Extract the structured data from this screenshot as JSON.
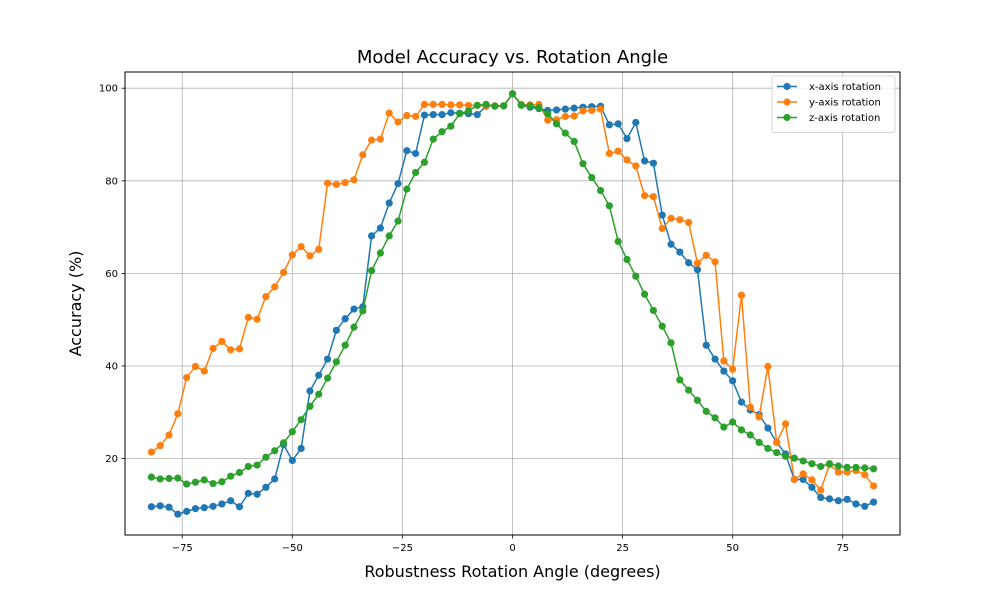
{
  "chart_data": {
    "type": "line",
    "title": "Model Accuracy vs. Rotation Angle",
    "xlabel": "Robustness Rotation Angle (degrees)",
    "ylabel": "Accuracy (%)",
    "xlim": [
      -88,
      88
    ],
    "ylim": [
      3.5,
      103.5
    ],
    "xticks": [
      -75,
      -50,
      -25,
      0,
      25,
      50,
      75
    ],
    "yticks": [
      20,
      40,
      60,
      80,
      100
    ],
    "grid": true,
    "legend_position": "top-right",
    "x": [
      -82,
      -80,
      -78,
      -76,
      -74,
      -72,
      -70,
      -68,
      -66,
      -64,
      -62,
      -60,
      -58,
      -56,
      -54,
      -52,
      -50,
      -48,
      -46,
      -44,
      -42,
      -40,
      -38,
      -36,
      -34,
      -32,
      -30,
      -28,
      -26,
      -24,
      -22,
      -20,
      -18,
      -16,
      -14,
      -12,
      -10,
      -8,
      -6,
      -4,
      -2,
      0,
      2,
      4,
      6,
      8,
      10,
      12,
      14,
      16,
      18,
      20,
      22,
      24,
      26,
      28,
      30,
      32,
      34,
      36,
      38,
      40,
      42,
      44,
      46,
      48,
      50,
      52,
      54,
      56,
      58,
      60,
      62,
      64,
      66,
      68,
      70,
      72,
      74,
      76,
      78,
      80,
      82
    ],
    "series": [
      {
        "name": "x-axis rotation",
        "color": "#1f77b4",
        "values": [
          9.6,
          9.8,
          9.5,
          8.0,
          8.6,
          9.2,
          9.4,
          9.7,
          10.2,
          10.9,
          9.6,
          12.5,
          12.3,
          13.8,
          15.6,
          23.0,
          19.6,
          22.2,
          34.6,
          38.0,
          41.5,
          47.7,
          50.2,
          52.3,
          52.8,
          68.1,
          69.8,
          75.2,
          79.4,
          86.5,
          85.9,
          94.2,
          94.3,
          94.3,
          94.7,
          94.6,
          94.5,
          94.3,
          96.1,
          96.2,
          96.2,
          98.8,
          96.4,
          95.9,
          95.6,
          95.2,
          95.3,
          95.5,
          95.7,
          95.9,
          96.0,
          96.1,
          92.1,
          92.3,
          89.1,
          92.6,
          84.3,
          83.8,
          72.6,
          66.3,
          64.6,
          62.3,
          60.8,
          44.5,
          41.5,
          38.9,
          36.8,
          32.2,
          30.5,
          29.5,
          26.6,
          23.5,
          21.0,
          15.5,
          15.5,
          13.8,
          11.6,
          11.3,
          10.9,
          11.2,
          10.2,
          9.7,
          10.6
        ]
      },
      {
        "name": "y-axis rotation",
        "color": "#ff7f0e",
        "values": [
          21.4,
          22.8,
          25.1,
          29.7,
          37.5,
          39.9,
          38.9,
          43.8,
          45.3,
          43.5,
          43.7,
          50.5,
          50.1,
          55.0,
          57.1,
          60.2,
          64.0,
          65.8,
          63.8,
          65.2,
          79.5,
          79.2,
          79.6,
          80.2,
          85.6,
          88.8,
          89.0,
          94.6,
          92.7,
          94.1,
          93.9,
          96.5,
          96.5,
          96.5,
          96.4,
          96.4,
          96.3,
          96.3,
          96.2,
          96.2,
          96.2,
          98.8,
          96.5,
          96.4,
          96.5,
          93.1,
          93.2,
          93.9,
          94.0,
          95.1,
          95.2,
          95.5,
          85.9,
          86.4,
          84.5,
          83.2,
          76.8,
          76.6,
          69.7,
          71.9,
          71.6,
          71.0,
          62.2,
          63.9,
          62.5,
          41.1,
          39.3,
          55.3,
          31.1,
          29.0,
          39.9,
          23.5,
          27.5,
          15.5,
          16.7,
          15.4,
          13.2,
          18.7,
          17.1,
          17.1,
          17.4,
          16.5,
          14.1
        ]
      },
      {
        "name": "z-axis rotation",
        "color": "#2ca02c",
        "values": [
          16.0,
          15.6,
          15.7,
          15.8,
          14.5,
          14.9,
          15.4,
          14.6,
          15.0,
          16.2,
          17.0,
          18.3,
          18.6,
          20.3,
          21.7,
          23.4,
          25.8,
          28.4,
          31.3,
          33.9,
          37.4,
          40.9,
          44.5,
          48.4,
          51.9,
          60.6,
          64.4,
          68.1,
          71.3,
          78.2,
          81.8,
          84.0,
          89.0,
          90.6,
          91.8,
          94.5,
          95.1,
          96.3,
          96.5,
          96.1,
          96.2,
          98.8,
          96.3,
          96.2,
          95.8,
          94.5,
          92.3,
          90.3,
          88.5,
          83.7,
          80.7,
          77.9,
          74.6,
          66.9,
          63.0,
          59.4,
          55.5,
          52.0,
          48.6,
          45.0,
          37.0,
          34.8,
          32.6,
          30.2,
          28.8,
          26.8,
          27.9,
          26.2,
          25.1,
          23.5,
          22.2,
          21.3,
          20.5,
          20.1,
          19.5,
          18.9,
          18.3,
          18.9,
          18.4,
          18.1,
          18.1,
          18.0,
          17.8
        ]
      }
    ]
  }
}
